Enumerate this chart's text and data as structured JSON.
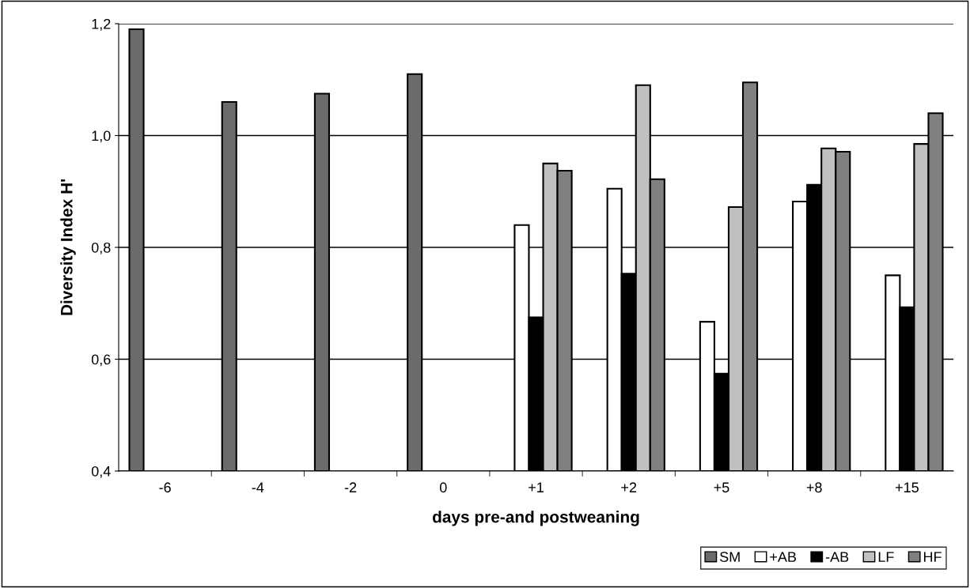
{
  "chart_data": {
    "type": "bar",
    "xlabel": "days pre-and postweaning",
    "ylabel": "Diversity Index H'",
    "categories": [
      "-6",
      "-4",
      "-2",
      "0",
      "+1",
      "+2",
      "+5",
      "+8",
      "+15"
    ],
    "series": [
      {
        "name": "SM",
        "color": "#6b6b6b",
        "values": [
          1.19,
          1.06,
          1.075,
          1.11,
          null,
          null,
          null,
          null,
          null
        ]
      },
      {
        "name": "+AB",
        "color": "#ffffff",
        "values": [
          null,
          null,
          null,
          null,
          0.84,
          0.905,
          0.667,
          0.882,
          0.75
        ]
      },
      {
        "name": "-AB",
        "color": "#000000",
        "values": [
          null,
          null,
          null,
          null,
          0.675,
          0.753,
          0.574,
          0.912,
          0.693
        ]
      },
      {
        "name": "LF",
        "color": "#c0c0c0",
        "values": [
          null,
          null,
          null,
          null,
          0.95,
          1.09,
          0.872,
          0.977,
          0.985
        ]
      },
      {
        "name": "HF",
        "color": "#808080",
        "values": [
          null,
          null,
          null,
          null,
          0.937,
          0.922,
          1.095,
          0.971,
          1.04
        ]
      }
    ],
    "ylim": [
      0.4,
      1.2
    ],
    "yticks": [
      {
        "value": 0.4,
        "label": "0,4"
      },
      {
        "value": 0.6,
        "label": "0,6"
      },
      {
        "value": 0.8,
        "label": "0,8"
      },
      {
        "value": 1.0,
        "label": "1,0"
      },
      {
        "value": 1.2,
        "label": "1,2"
      }
    ],
    "grid": "y",
    "legend": "bottom right"
  }
}
